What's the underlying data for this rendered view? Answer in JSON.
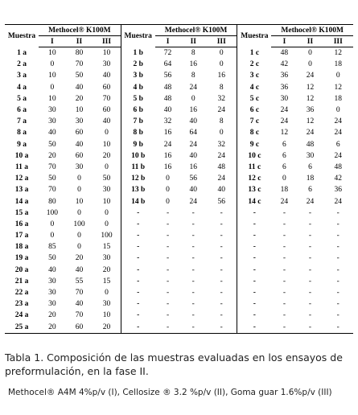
{
  "table": {
    "group_header": "Muestra",
    "columns_title": "Methocel® K100M",
    "subcolumns": [
      "I",
      "II",
      "III"
    ],
    "rows": [
      [
        "1 a",
        10,
        80,
        10,
        "1 b",
        72,
        8,
        0,
        "1 c",
        48,
        0,
        12
      ],
      [
        "2 a",
        0,
        70,
        30,
        "2 b",
        64,
        16,
        0,
        "2 c",
        42,
        0,
        18
      ],
      [
        "3 a",
        10,
        50,
        40,
        "3 b",
        56,
        8,
        16,
        "3 c",
        36,
        24,
        0
      ],
      [
        "4 a",
        0,
        40,
        60,
        "4 b",
        48,
        24,
        8,
        "4 c",
        36,
        12,
        12
      ],
      [
        "5 a",
        10,
        20,
        70,
        "5 b",
        48,
        0,
        32,
        "5 c",
        30,
        12,
        18
      ],
      [
        "6 a",
        30,
        10,
        60,
        "6 b",
        40,
        16,
        24,
        "6 c",
        24,
        36,
        0
      ],
      [
        "7 a",
        30,
        30,
        40,
        "7 b",
        32,
        40,
        8,
        "7 c",
        24,
        12,
        24
      ],
      [
        "8 a",
        40,
        60,
        0,
        "8 b",
        16,
        64,
        0,
        "8 c",
        12,
        24,
        24
      ],
      [
        "9 a",
        50,
        40,
        10,
        "9 b",
        24,
        24,
        32,
        "9 c",
        6,
        48,
        6
      ],
      [
        "10 a",
        20,
        60,
        20,
        "10 b",
        16,
        40,
        24,
        "10 c",
        6,
        30,
        24
      ],
      [
        "11 a",
        70,
        30,
        0,
        "11 b",
        16,
        16,
        48,
        "11 c",
        6,
        6,
        48
      ],
      [
        "12 a",
        50,
        0,
        50,
        "12 b",
        0,
        56,
        24,
        "12 c",
        0,
        18,
        42
      ],
      [
        "13 a",
        70,
        0,
        30,
        "13 b",
        0,
        40,
        40,
        "13 c",
        18,
        6,
        36
      ],
      [
        "14 a",
        80,
        10,
        10,
        "14 b",
        0,
        24,
        56,
        "14 c",
        24,
        24,
        24
      ],
      [
        "15 a",
        100,
        0,
        0,
        "-",
        "-",
        "-",
        "-",
        "-",
        "-",
        "-",
        "-"
      ],
      [
        "16 a",
        0,
        100,
        0,
        "-",
        "-",
        "-",
        "-",
        "-",
        "-",
        "-",
        "-"
      ],
      [
        "17 a",
        0,
        0,
        100,
        "-",
        "-",
        "-",
        "-",
        "-",
        "-",
        "-",
        "-"
      ],
      [
        "18 a",
        85,
        0,
        15,
        "-",
        "-",
        "-",
        "-",
        "-",
        "-",
        "-",
        "-"
      ],
      [
        "19 a",
        50,
        20,
        30,
        "-",
        "-",
        "-",
        "-",
        "-",
        "-",
        "-",
        "-"
      ],
      [
        "20 a",
        40,
        40,
        20,
        "-",
        "-",
        "-",
        "-",
        "-",
        "-",
        "-",
        "-"
      ],
      [
        "21 a",
        30,
        55,
        15,
        "-",
        "-",
        "-",
        "-",
        "-",
        "-",
        "-",
        "-"
      ],
      [
        "22 a",
        30,
        70,
        0,
        "-",
        "-",
        "-",
        "-",
        "-",
        "-",
        "-",
        "-"
      ],
      [
        "23 a",
        30,
        40,
        30,
        "-",
        "-",
        "-",
        "-",
        "-",
        "-",
        "-",
        "-"
      ],
      [
        "24 a",
        20,
        70,
        10,
        "-",
        "-",
        "-",
        "-",
        "-",
        "-",
        "-",
        "-"
      ],
      [
        "25 a",
        20,
        60,
        20,
        "-",
        "-",
        "-",
        "-",
        "-",
        "-",
        "-",
        "-"
      ]
    ]
  },
  "caption": "Tabla 1.  Composición de las muestras evaluadas en los ensayos de preformulación, en la fase II.",
  "footnote": "Methocel® A4M 4%p/v (I), Cellosize ® 3.2 %p/v (II), Goma guar 1.6%p/v (III)"
}
